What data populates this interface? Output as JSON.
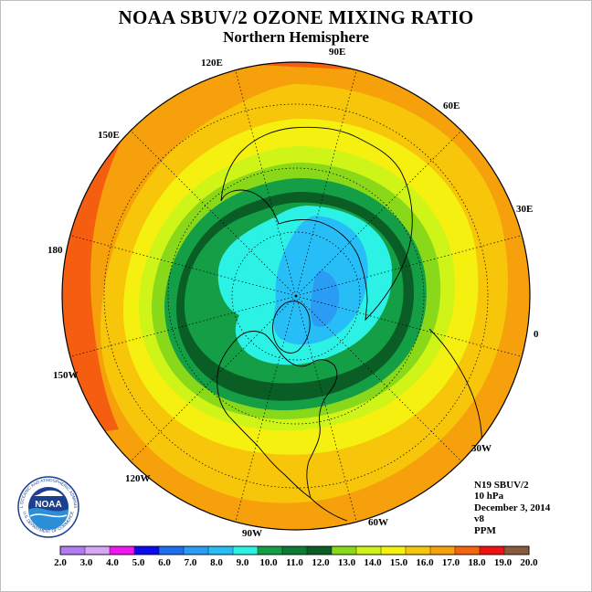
{
  "header": {
    "title": "NOAA SBUV/2 OZONE MIXING RATIO",
    "subtitle": "Northern Hemisphere"
  },
  "longitude_labels": [
    "90E",
    "60E",
    "30E",
    "0",
    "30W",
    "60W",
    "90W",
    "120W",
    "150W",
    "180",
    "150E",
    "120E"
  ],
  "info": {
    "satellite": "N19 SBUV/2",
    "level": "10 hPa",
    "date": "December 3, 2014",
    "version": "v8",
    "units": "PPM"
  },
  "colorbar": {
    "ticks": [
      "2.0",
      "3.0",
      "4.0",
      "5.0",
      "6.0",
      "7.0",
      "8.0",
      "9.0",
      "10.0",
      "11.0",
      "12.0",
      "13.0",
      "14.0",
      "15.0",
      "16.0",
      "17.0",
      "18.0",
      "19.0",
      "20.0"
    ],
    "colors": [
      "#b07cf0",
      "#d4a8f4",
      "#f016ef",
      "#0a0aef",
      "#1b6ff0",
      "#2a9cf3",
      "#27bef7",
      "#2cf2e6",
      "#149e45",
      "#0c7c35",
      "#0a5d25",
      "#87d91a",
      "#cff418",
      "#f5f20e",
      "#f7c80a",
      "#f6a20c",
      "#f4650e",
      "#ee1212",
      "#8a5a3c"
    ]
  },
  "map": {
    "projection": "north polar stereographic",
    "ocean_contour_colors": [
      "#f55d10",
      "#f6a00c",
      "#f7c60a",
      "#f6f010",
      "#cff418",
      "#8ad81a",
      "#149e45",
      "#0a5d25",
      "#2cf2e6",
      "#27bef7",
      "#2a9cf3"
    ]
  },
  "logo": {
    "text": "NOAA",
    "ring_text": "NATIONAL OCEANIC AND ATMOSPHERIC ADMINISTRATION",
    "ring_text_bottom": "U.S. DEPARTMENT OF COMMERCE"
  }
}
